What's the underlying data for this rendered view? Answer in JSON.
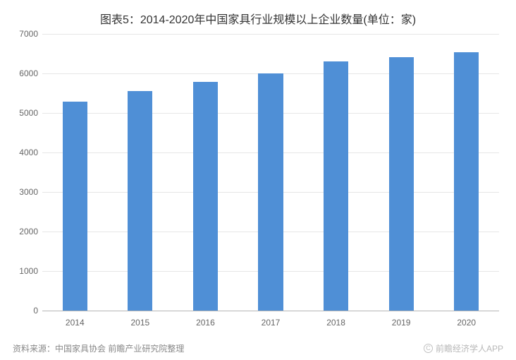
{
  "title": "图表5：2014-2020年中国家具行业规模以上企业数量(单位：家)",
  "source_label": "资料来源：中国家具协会 前瞻产业研究院整理",
  "copyright_text": "前瞻经济学人APP",
  "chart": {
    "type": "bar",
    "categories": [
      "2014",
      "2015",
      "2016",
      "2017",
      "2018",
      "2019",
      "2020"
    ],
    "values": [
      5290,
      5560,
      5780,
      6000,
      6300,
      6410,
      6544
    ],
    "bar_color": "#4f8fd6",
    "background_color": "#ffffff",
    "grid_color": "#e6e6e6",
    "axis_color": "#b5b5b5",
    "text_color": "#666666",
    "ylim": [
      0,
      7000
    ],
    "ytick_step": 1000,
    "bar_width_ratio": 0.38,
    "title_fontsize": 16,
    "label_fontsize": 12
  }
}
